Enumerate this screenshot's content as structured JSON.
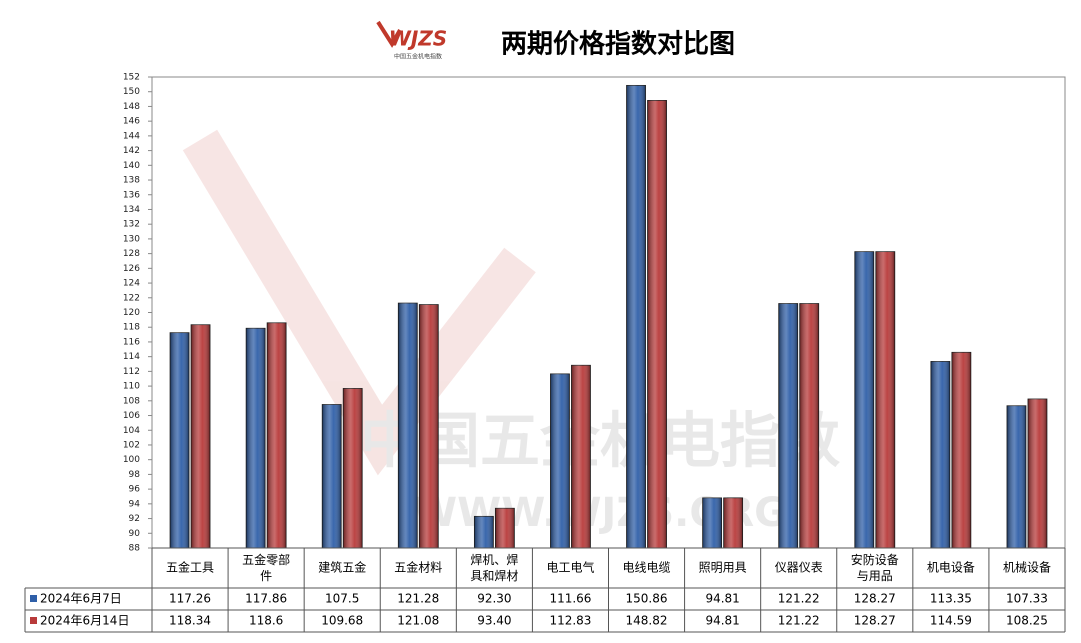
{
  "chart_data": {
    "type": "bar",
    "title": "两期价格指数对比图",
    "logo": "WJZS",
    "logo_subtitle": "中国五金机电指数",
    "watermark": [
      "中国五金机电指数",
      "WWW.WJZS.ORG"
    ],
    "categories": [
      "五金工具",
      "五金零部件",
      "建筑五金",
      "五金材料",
      "焊机、焊具和焊材",
      "电工电气",
      "电线电缆",
      "照明用具",
      "仪器仪表",
      "安防设备与用品",
      "机电设备",
      "机械设备"
    ],
    "series": [
      {
        "name": "2024年6月7日",
        "color": "#2f5fa8",
        "values": [
          117.26,
          117.86,
          107.5,
          121.28,
          92.3,
          111.66,
          150.86,
          94.81,
          121.22,
          128.27,
          113.35,
          107.33
        ],
        "value_labels": [
          "117.26",
          "117.86",
          "107.5",
          "121.28",
          "92.30",
          "111.66",
          "150.86",
          "94.81",
          "121.22",
          "128.27",
          "113.35",
          "107.33"
        ]
      },
      {
        "name": "2024年6月14日",
        "color": "#b83a3a",
        "values": [
          118.34,
          118.6,
          109.68,
          121.08,
          93.4,
          112.83,
          148.82,
          94.81,
          121.22,
          128.27,
          114.59,
          108.25
        ],
        "value_labels": [
          "118.34",
          "118.6",
          "109.68",
          "121.08",
          "93.40",
          "112.83",
          "148.82",
          "94.81",
          "121.22",
          "128.27",
          "114.59",
          "108.25"
        ]
      }
    ],
    "ylim": [
      88,
      152
    ],
    "yticks": [
      88,
      90,
      92,
      94,
      96,
      98,
      100,
      102,
      104,
      106,
      108,
      110,
      112,
      114,
      116,
      118,
      120,
      122,
      124,
      126,
      128,
      130,
      132,
      134,
      136,
      138,
      140,
      142,
      144,
      146,
      148,
      150,
      152
    ],
    "grid": false
  }
}
